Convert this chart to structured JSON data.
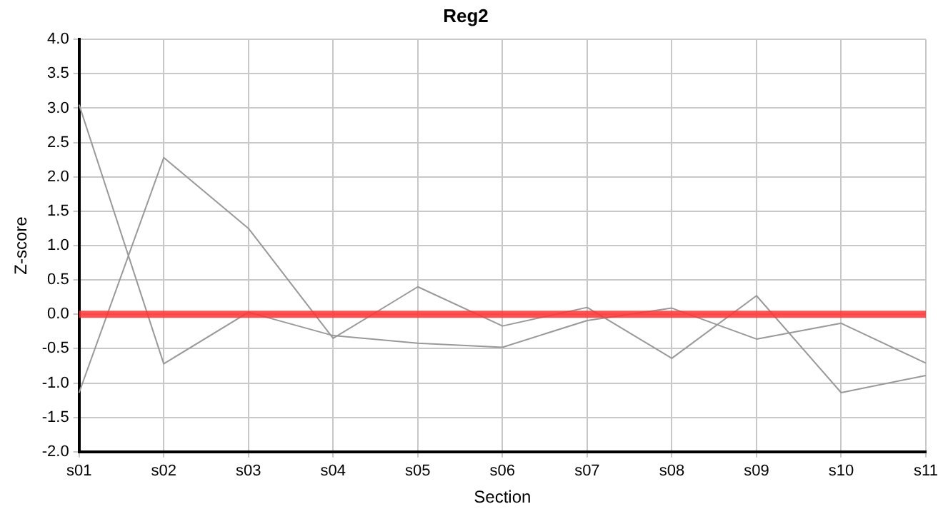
{
  "chart_data": {
    "type": "line",
    "title": "Reg2",
    "xlabel": "Section",
    "ylabel": "Z-score",
    "categories": [
      "s01",
      "s02",
      "s03",
      "s04",
      "s05",
      "s06",
      "s07",
      "s08",
      "s09",
      "s10",
      "s11"
    ],
    "series": [
      {
        "color": "#999999",
        "values": [
          3.05,
          -0.72,
          0.03,
          -0.31,
          -0.42,
          -0.48,
          -0.09,
          0.09,
          -0.36,
          -0.13,
          -0.71
        ]
      },
      {
        "color": "#999999",
        "values": [
          -1.14,
          2.28,
          1.25,
          -0.35,
          0.4,
          -0.17,
          0.1,
          -0.64,
          0.27,
          -1.14,
          -0.89
        ]
      }
    ],
    "ylim": [
      -2,
      4
    ],
    "yticks": [
      {
        "value": -2,
        "label": "-2.0"
      },
      {
        "value": -1.5,
        "label": "-1.5"
      },
      {
        "value": -1,
        "label": "-1.0"
      },
      {
        "value": -0.5,
        "label": "-0.5"
      },
      {
        "value": 0,
        "label": "0.0"
      },
      {
        "value": 0.5,
        "label": "0.5"
      },
      {
        "value": 1,
        "label": "1.0"
      },
      {
        "value": 1.5,
        "label": "1.5"
      },
      {
        "value": 2,
        "label": "2.0"
      },
      {
        "value": 2.5,
        "label": "2.5"
      },
      {
        "value": 3,
        "label": "3.0"
      },
      {
        "value": 3.5,
        "label": "3.5"
      },
      {
        "value": 4,
        "label": "4.0"
      }
    ],
    "ref_lines": [
      {
        "axis": "y",
        "value": 0,
        "color": "#ff3333"
      }
    ],
    "grid": true,
    "legend": false,
    "marker": "none",
    "line_style": "solid"
  }
}
